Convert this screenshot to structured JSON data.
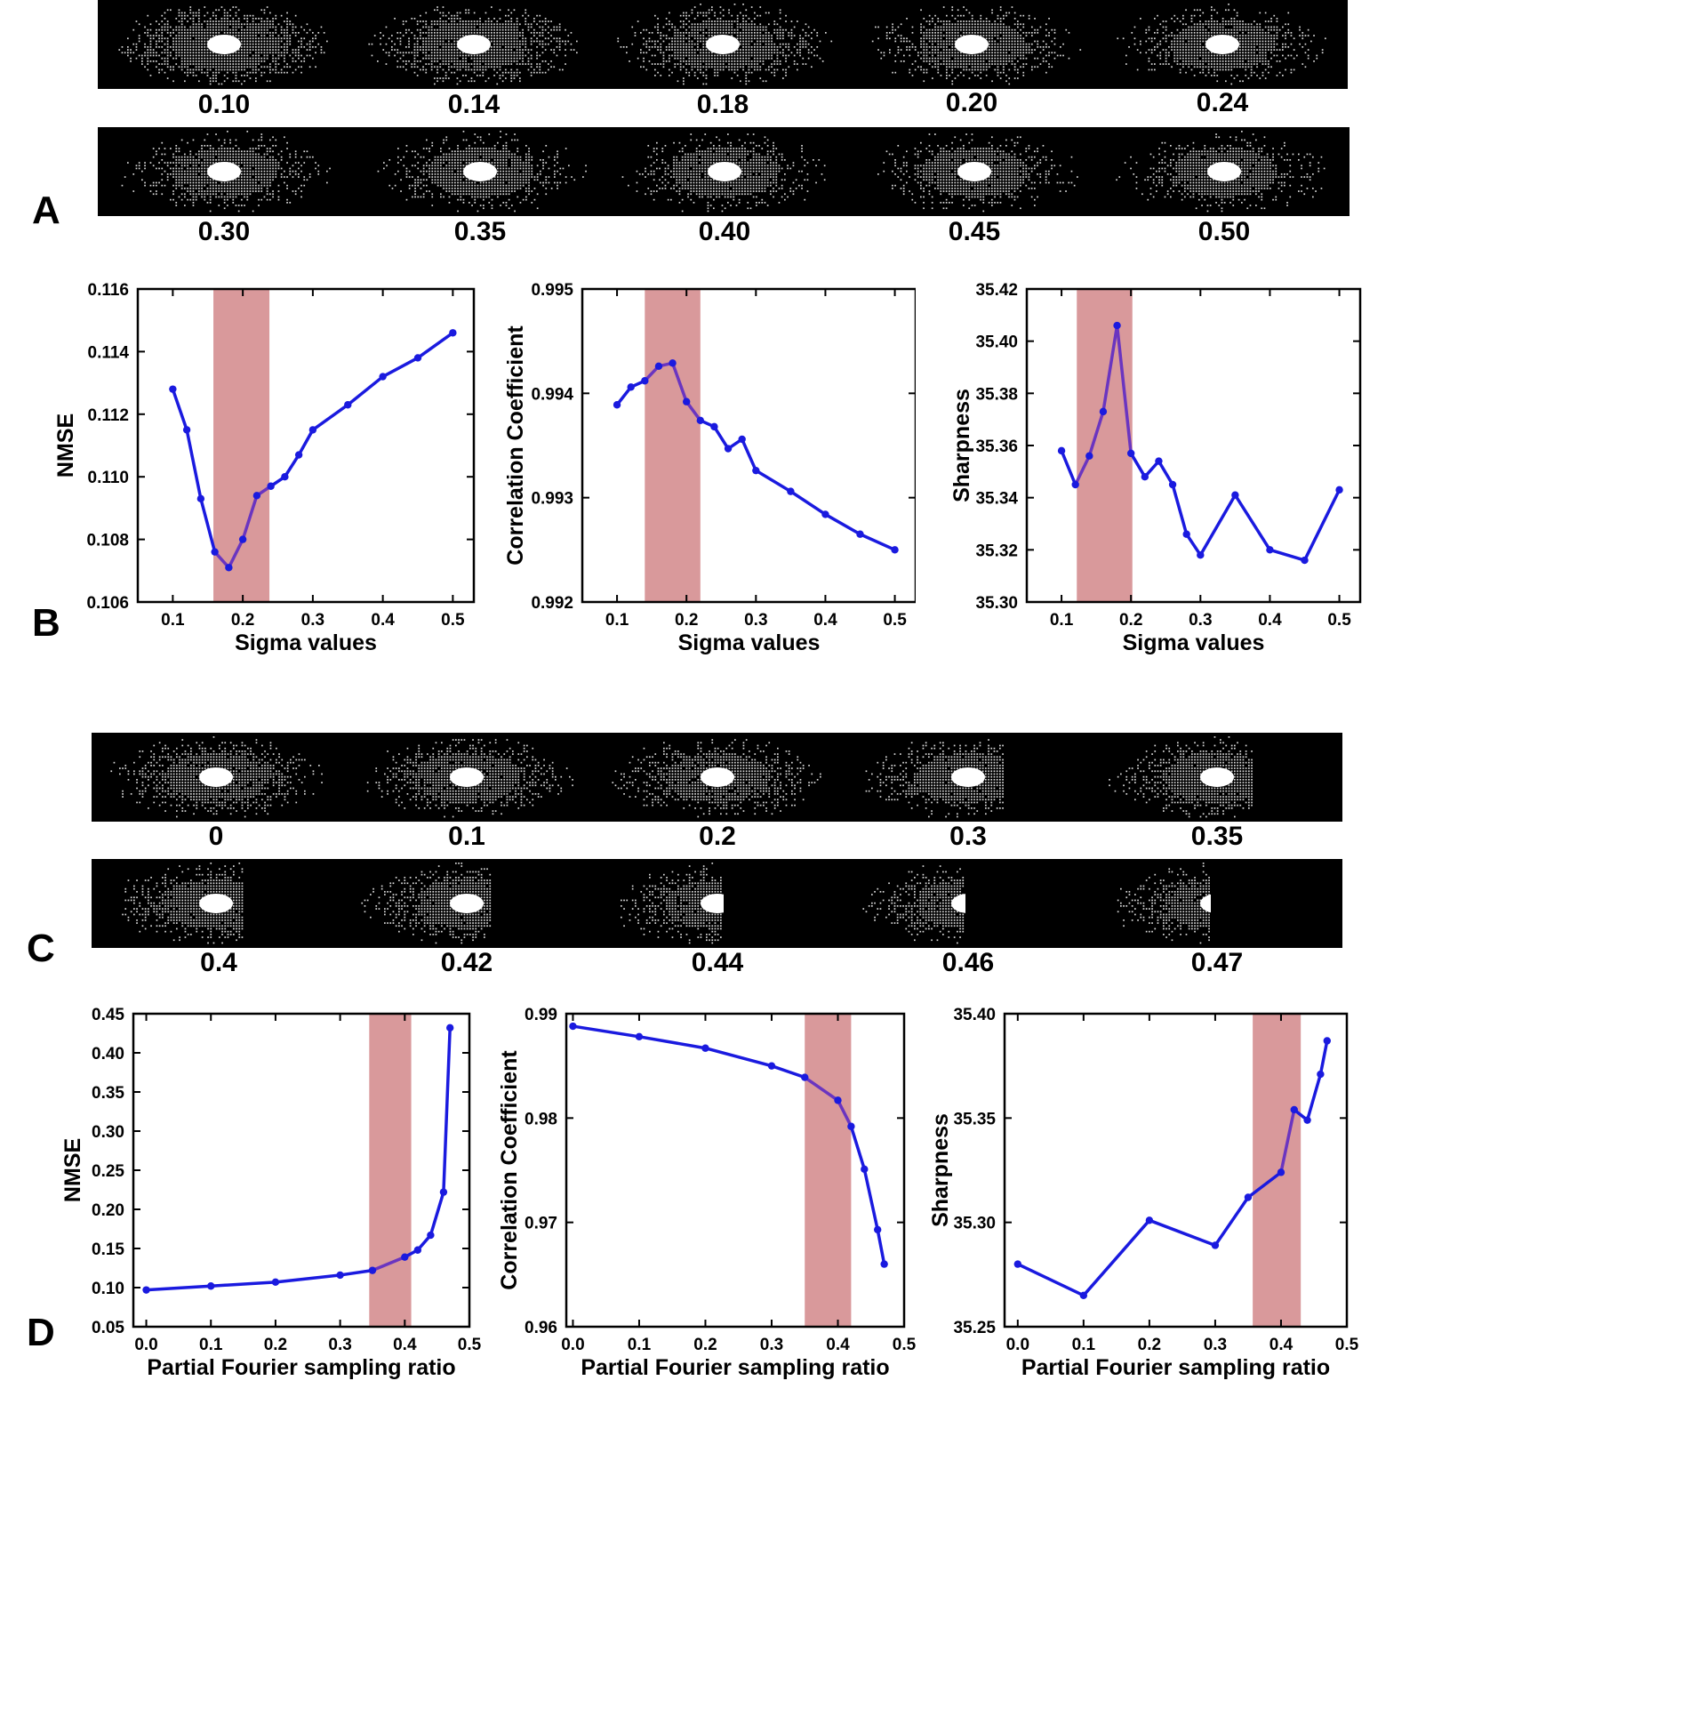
{
  "panels": {
    "A": "A",
    "B": "B",
    "C": "C",
    "D": "D"
  },
  "panel_a": {
    "row1": [
      "0.10",
      "0.14",
      "0.18",
      "0.20",
      "0.24"
    ],
    "row2": [
      "0.30",
      "0.35",
      "0.40",
      "0.45",
      "0.50"
    ]
  },
  "panel_c": {
    "row1": [
      "0",
      "0.1",
      "0.2",
      "0.3",
      "0.35"
    ],
    "row2": [
      "0.4",
      "0.42",
      "0.44",
      "0.46",
      "0.47"
    ]
  },
  "colors": {
    "line": "#1a1adf",
    "highlight": "#d9999b",
    "highlight_line": "#6a35c0"
  },
  "chart_data": [
    {
      "id": "b1",
      "type": "line",
      "title": "",
      "xlabel": "Sigma values",
      "ylabel": "NMSE",
      "xlim": [
        0.05,
        0.53
      ],
      "ylim": [
        0.106,
        0.116
      ],
      "xticks": [
        0.1,
        0.2,
        0.3,
        0.4,
        0.5
      ],
      "xticklabels": [
        "0.1",
        "0.2",
        "0.3",
        "0.4",
        "0.5"
      ],
      "yticks": [
        0.106,
        0.108,
        0.11,
        0.112,
        0.114,
        0.116
      ],
      "yticklabels": [
        "0.106",
        "0.108",
        "0.110",
        "0.112",
        "0.114",
        "0.116"
      ],
      "highlight": [
        0.158,
        0.238
      ],
      "x": [
        0.1,
        0.12,
        0.14,
        0.16,
        0.18,
        0.2,
        0.22,
        0.24,
        0.26,
        0.28,
        0.3,
        0.35,
        0.4,
        0.45,
        0.5
      ],
      "y": [
        0.1128,
        0.1115,
        0.1093,
        0.1076,
        0.1071,
        0.108,
        0.1094,
        0.1097,
        0.11,
        0.1107,
        0.1115,
        0.1123,
        0.1132,
        0.1138,
        0.1146
      ]
    },
    {
      "id": "b2",
      "type": "line",
      "title": "",
      "xlabel": "Sigma values",
      "ylabel": "Correlation Coefficient",
      "xlim": [
        0.05,
        0.53
      ],
      "ylim": [
        0.992,
        0.995
      ],
      "xticks": [
        0.1,
        0.2,
        0.3,
        0.4,
        0.5
      ],
      "xticklabels": [
        "0.1",
        "0.2",
        "0.3",
        "0.4",
        "0.5"
      ],
      "yticks": [
        0.992,
        0.993,
        0.994,
        0.995
      ],
      "yticklabels": [
        "0.992",
        "0.993",
        "0.994",
        "0.995"
      ],
      "highlight": [
        0.14,
        0.22
      ],
      "x": [
        0.1,
        0.12,
        0.14,
        0.16,
        0.18,
        0.2,
        0.22,
        0.24,
        0.26,
        0.28,
        0.3,
        0.35,
        0.4,
        0.45,
        0.5
      ],
      "y": [
        0.99389,
        0.99406,
        0.99412,
        0.99426,
        0.99429,
        0.99392,
        0.99374,
        0.99368,
        0.99347,
        0.99356,
        0.99326,
        0.99306,
        0.99284,
        0.99265,
        0.9925
      ]
    },
    {
      "id": "b3",
      "type": "line",
      "title": "",
      "xlabel": "Sigma values",
      "ylabel": "Sharpness",
      "xlim": [
        0.05,
        0.53
      ],
      "ylim": [
        35.3,
        35.42
      ],
      "xticks": [
        0.1,
        0.2,
        0.3,
        0.4,
        0.5
      ],
      "xticklabels": [
        "0.1",
        "0.2",
        "0.3",
        "0.4",
        "0.5"
      ],
      "yticks": [
        35.3,
        35.32,
        35.34,
        35.36,
        35.38,
        35.4,
        35.42
      ],
      "yticklabels": [
        "35.30",
        "35.32",
        "35.34",
        "35.36",
        "35.38",
        "35.40",
        "35.42"
      ],
      "highlight": [
        0.122,
        0.202
      ],
      "x": [
        0.1,
        0.12,
        0.14,
        0.16,
        0.18,
        0.2,
        0.22,
        0.24,
        0.26,
        0.28,
        0.3,
        0.35,
        0.4,
        0.45,
        0.5
      ],
      "y": [
        35.358,
        35.345,
        35.356,
        35.373,
        35.406,
        35.357,
        35.348,
        35.354,
        35.345,
        35.326,
        35.318,
        35.341,
        35.32,
        35.316,
        35.343
      ]
    },
    {
      "id": "d1",
      "type": "line",
      "title": "",
      "xlabel": "Partial Fourier sampling ratio",
      "ylabel": "NMSE",
      "xlim": [
        -0.02,
        0.5
      ],
      "ylim": [
        0.05,
        0.45
      ],
      "xticks": [
        0.0,
        0.1,
        0.2,
        0.3,
        0.4,
        0.5
      ],
      "xticklabels": [
        "0.0",
        "0.1",
        "0.2",
        "0.3",
        "0.4",
        "0.5"
      ],
      "yticks": [
        0.05,
        0.1,
        0.15,
        0.2,
        0.25,
        0.3,
        0.35,
        0.4,
        0.45
      ],
      "yticklabels": [
        "0.05",
        "0.10",
        "0.15",
        "0.20",
        "0.25",
        "0.30",
        "0.35",
        "0.40",
        "0.45"
      ],
      "highlight": [
        0.345,
        0.41
      ],
      "x": [
        0,
        0.1,
        0.2,
        0.3,
        0.35,
        0.4,
        0.42,
        0.44,
        0.46,
        0.47
      ],
      "y": [
        0.097,
        0.102,
        0.107,
        0.116,
        0.122,
        0.139,
        0.148,
        0.167,
        0.222,
        0.432
      ]
    },
    {
      "id": "d2",
      "type": "line",
      "title": "",
      "xlabel": "Partial Fourier sampling ratio",
      "ylabel": "Correlation Coefficient",
      "xlim": [
        -0.01,
        0.5
      ],
      "ylim": [
        0.96,
        0.99
      ],
      "xticks": [
        0.0,
        0.1,
        0.2,
        0.3,
        0.4,
        0.5
      ],
      "xticklabels": [
        "0.0",
        "0.1",
        "0.2",
        "0.3",
        "0.4",
        "0.5"
      ],
      "yticks": [
        0.96,
        0.97,
        0.98,
        0.99
      ],
      "yticklabels": [
        "0.96",
        "0.97",
        "0.98",
        "0.99"
      ],
      "highlight": [
        0.35,
        0.42
      ],
      "x": [
        0,
        0.1,
        0.2,
        0.3,
        0.35,
        0.4,
        0.42,
        0.44,
        0.46,
        0.47
      ],
      "y": [
        0.9888,
        0.9878,
        0.9867,
        0.985,
        0.9839,
        0.9817,
        0.9792,
        0.9751,
        0.9693,
        0.966
      ]
    },
    {
      "id": "d3",
      "type": "line",
      "title": "",
      "xlabel": "Partial Fourier sampling ratio",
      "ylabel": "Sharpness",
      "xlim": [
        -0.02,
        0.5
      ],
      "ylim": [
        35.25,
        35.4
      ],
      "xticks": [
        0.0,
        0.1,
        0.2,
        0.3,
        0.4,
        0.5
      ],
      "xticklabels": [
        "0.0",
        "0.1",
        "0.2",
        "0.3",
        "0.4",
        "0.5"
      ],
      "yticks": [
        35.25,
        35.3,
        35.35,
        35.4
      ],
      "yticklabels": [
        "35.25",
        "35.30",
        "35.35",
        "35.40"
      ],
      "highlight": [
        0.357,
        0.43
      ],
      "x": [
        0,
        0.1,
        0.2,
        0.3,
        0.35,
        0.4,
        0.42,
        0.44,
        0.46,
        0.47
      ],
      "y": [
        35.28,
        35.265,
        35.301,
        35.289,
        35.312,
        35.324,
        35.354,
        35.349,
        35.371,
        35.387
      ]
    }
  ]
}
